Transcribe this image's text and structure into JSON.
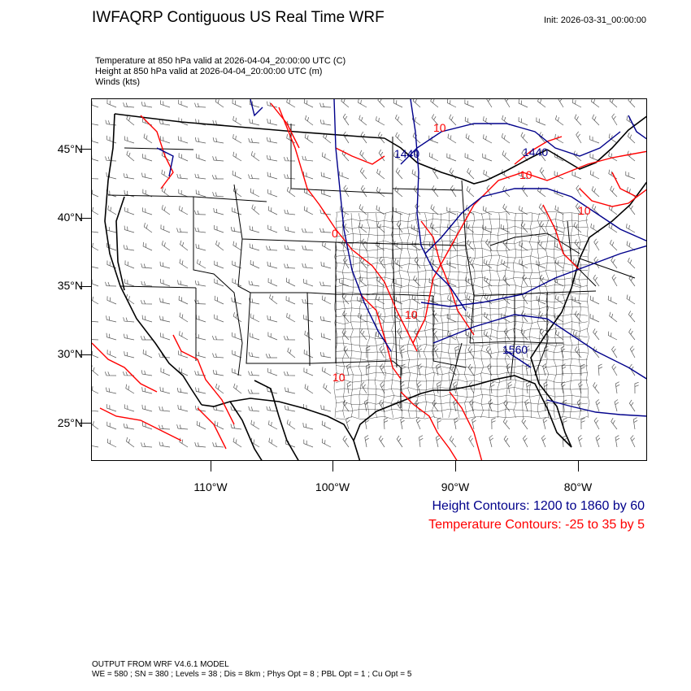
{
  "header": {
    "title": "IWFAQRP Contiguous US Real Time WRF",
    "init": "Init: 2026-03-31_00:00:00"
  },
  "fields": [
    "Temperature at 850 hPa valid at 2026-04-04_20:00:00 UTC   (C)",
    "Height at 850 hPa valid at 2026-04-04_20:00:00 UTC   (m)",
    "Winds   (kts)"
  ],
  "axes": {
    "lat_labels": [
      "45°N",
      "40°N",
      "35°N",
      "30°N",
      "25°N"
    ],
    "lon_labels": [
      "110°W",
      "100°W",
      "90°W",
      "80°W"
    ]
  },
  "contour_labels": {
    "height": [
      "1440",
      "1440",
      "1560"
    ],
    "temperature": [
      "10",
      "0",
      "10",
      "10",
      "10",
      "10"
    ]
  },
  "legend": {
    "height": "Height Contours: 1200 to 1860 by 60",
    "temperature": "Temperature Contours: -25 to 35 by 5"
  },
  "footer": {
    "model": "OUTPUT FROM WRF V4.6.1 MODEL",
    "config": "WE = 580 ; SN = 380 ; Levels = 38 ; Dis = 8km ; Phys Opt = 8 ; PBL Opt = 1 ; Cu Opt = 5"
  },
  "colors": {
    "height_contour": "#00008b",
    "temperature_contour": "#ff0000",
    "borders": "#000000",
    "wind_barbs": "#555555"
  }
}
